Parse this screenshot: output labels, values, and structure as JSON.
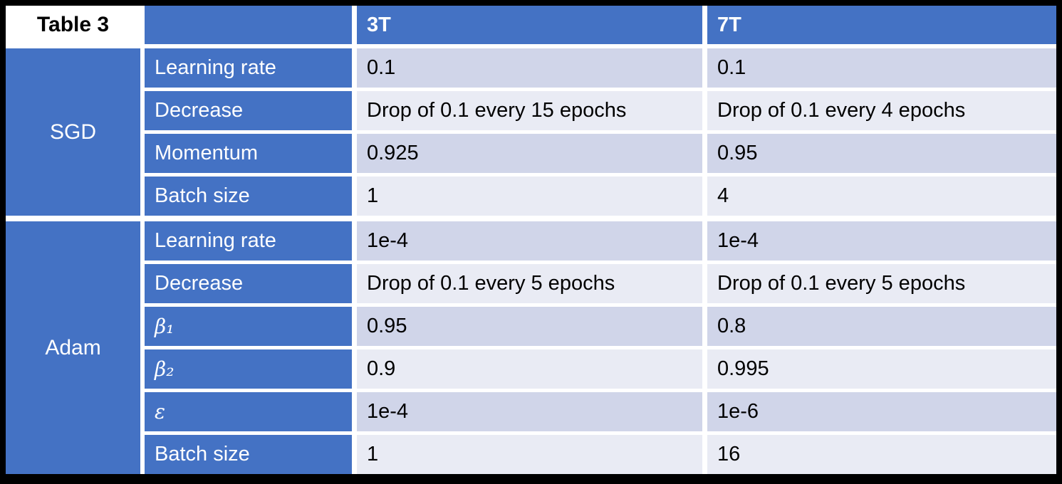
{
  "table": {
    "title": "Table 3",
    "column_headers": {
      "col3t": "3T",
      "col7t": "7T"
    },
    "sections": [
      {
        "group": "SGD",
        "rows": [
          {
            "param": "Learning rate",
            "v3t": "0.1",
            "v7t": "0.1"
          },
          {
            "param": "Decrease",
            "v3t": "Drop of 0.1 every 15 epochs",
            "v7t": "Drop of 0.1 every 4 epochs"
          },
          {
            "param": "Momentum",
            "v3t": "0.925",
            "v7t": "0.95"
          },
          {
            "param": "Batch size",
            "v3t": "1",
            "v7t": "4"
          }
        ]
      },
      {
        "group": "Adam",
        "rows": [
          {
            "param": "Learning rate",
            "v3t": "1e-4",
            "v7t": "1e-4"
          },
          {
            "param": "Decrease",
            "v3t": "Drop of 0.1 every 5 epochs",
            "v7t": "Drop of 0.1 every 5 epochs"
          },
          {
            "param": "β₁",
            "v3t": "0.95",
            "v7t": "0.8"
          },
          {
            "param": "β₂",
            "v3t": "0.9",
            "v7t": "0.995"
          },
          {
            "param": "ε",
            "v3t": "1e-4",
            "v7t": "1e-6"
          },
          {
            "param": "Batch size",
            "v3t": "1",
            "v7t": "16"
          }
        ]
      }
    ],
    "colors": {
      "header_blue": "#4472C4",
      "band_dark": "#D0D5E9",
      "band_light": "#E9EBF4",
      "gap_white": "#FFFFFF",
      "border_black": "#000000"
    }
  }
}
